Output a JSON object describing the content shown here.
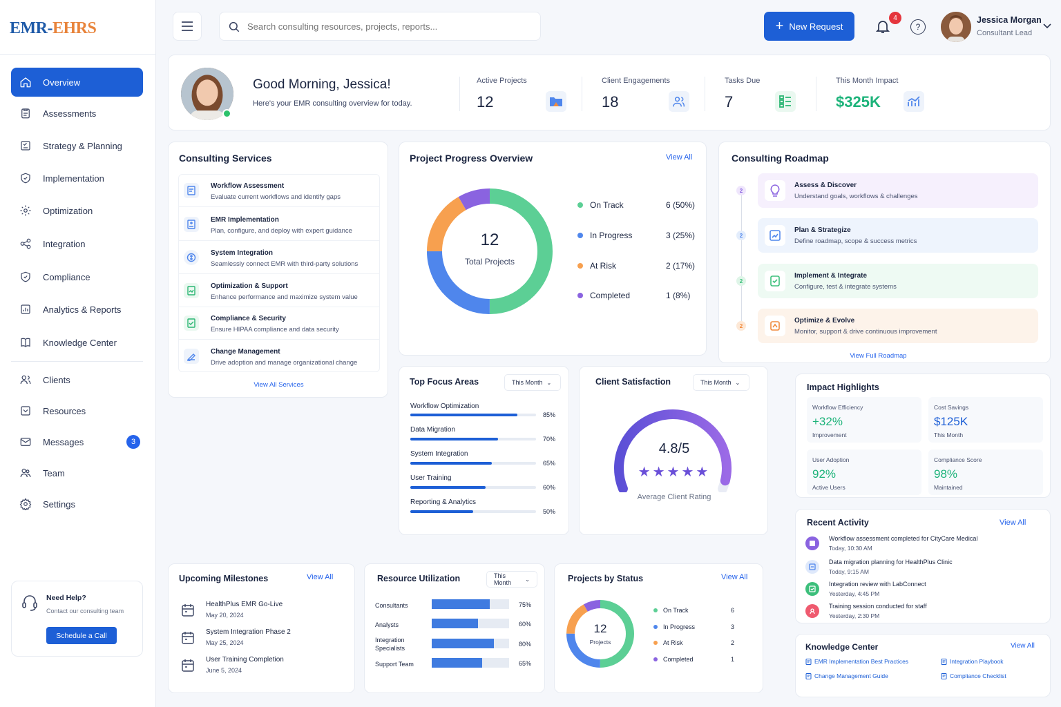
{
  "brand": {
    "logo_part1": "EMR",
    "logo_sep": "-",
    "logo_part2": "EHRS"
  },
  "sidebar": {
    "items": [
      {
        "label": "Overview"
      },
      {
        "label": "Assessments"
      },
      {
        "label": "Strategy & Planning"
      },
      {
        "label": "Implementation"
      },
      {
        "label": "Optimization"
      },
      {
        "label": "Integration"
      },
      {
        "label": "Compliance"
      },
      {
        "label": "Analytics & Reports"
      },
      {
        "label": "Knowledge Center"
      }
    ],
    "items2": [
      {
        "label": "Clients"
      },
      {
        "label": "Resources"
      },
      {
        "label": "Messages",
        "badge": "3"
      },
      {
        "label": "Team"
      },
      {
        "label": "Settings"
      }
    ],
    "help": {
      "title": "Need Help?",
      "subtitle": "Contact our consulting team",
      "button": "Schedule a Call"
    }
  },
  "header": {
    "search_placeholder": "Search consulting resources, projects, reports...",
    "new_request": "New Request",
    "notif_count": "4",
    "user_name": "Jessica Morgan",
    "user_role": "Consultant Lead"
  },
  "welcome": {
    "greeting": "Good Morning, Jessica!",
    "subtitle": "Here's your EMR consulting overview for today.",
    "stats": [
      {
        "label": "Active Projects",
        "value": "12"
      },
      {
        "label": "Client Engagements",
        "value": "18"
      },
      {
        "label": "Tasks Due",
        "value": "7"
      },
      {
        "label": "This Month Impact",
        "value": "$325K"
      }
    ]
  },
  "services": {
    "title": "Consulting Services",
    "items": [
      {
        "title": "Workflow Assessment",
        "desc": "Evaluate current workflows and identify gaps"
      },
      {
        "title": "EMR Implementation",
        "desc": "Plan, configure, and deploy with expert guidance"
      },
      {
        "title": "System Integration",
        "desc": "Seamlessly connect EMR with third-party solutions"
      },
      {
        "title": "Optimization & Support",
        "desc": "Enhance performance and maximize system value"
      },
      {
        "title": "Compliance & Security",
        "desc": "Ensure HIPAA compliance and data security"
      },
      {
        "title": "Change Management",
        "desc": "Drive adoption and manage organizational change"
      }
    ],
    "view_all": "View All Services"
  },
  "progress": {
    "title": "Project Progress Overview",
    "view_all": "View All",
    "center_value": "12",
    "center_label": "Total Projects",
    "legend": [
      {
        "label": "On Track",
        "value": "6 (50%)",
        "count": 6,
        "color": "#5ccf95"
      },
      {
        "label": "In Progress",
        "value": "3 (25%)",
        "count": 3,
        "color": "#4f86ec"
      },
      {
        "label": "At Risk",
        "value": "2 (17%)",
        "count": 2,
        "color": "#f7a04f"
      },
      {
        "label": "Completed",
        "value": "1 (8%)",
        "count": 1,
        "color": "#8a63e0"
      }
    ]
  },
  "roadmap": {
    "title": "Consulting Roadmap",
    "steps": [
      {
        "num": "2",
        "title": "Assess & Discover",
        "desc": "Understand goals, workflows & challenges",
        "bg": "#f6f0fd",
        "color": "#8a63e0"
      },
      {
        "num": "2",
        "title": "Plan & Strategize",
        "desc": "Define roadmap, scope & success metrics",
        "bg": "#eef4fd",
        "color": "#4f86ec"
      },
      {
        "num": "2",
        "title": "Implement & Integrate",
        "desc": "Configure, test & integrate systems",
        "bg": "#eefaf3",
        "color": "#3cbf7b"
      },
      {
        "num": "2",
        "title": "Optimize & Evolve",
        "desc": "Monitor, support & drive continuous improvement",
        "bg": "#fdf3ea",
        "color": "#f08a3c"
      }
    ],
    "view_full": "View Full Roadmap"
  },
  "focus": {
    "title": "Top Focus Areas",
    "period": "This Month",
    "items": [
      {
        "label": "Workflow Optimization",
        "value": "85%",
        "pct": 85
      },
      {
        "label": "Data Migration",
        "value": "70%",
        "pct": 70
      },
      {
        "label": "System Integration",
        "value": "65%",
        "pct": 65
      },
      {
        "label": "User Training",
        "value": "60%",
        "pct": 60
      },
      {
        "label": "Reporting & Analytics",
        "value": "50%",
        "pct": 50
      }
    ]
  },
  "satisfaction": {
    "title": "Client Satisfaction",
    "period": "This Month",
    "value": "4.8/5",
    "rating": 4.8,
    "label": "Average Client Rating"
  },
  "impact": {
    "title": "Impact Highlights",
    "items": [
      {
        "label": "Workflow Efficiency",
        "value": "+32%",
        "sub": "Improvement"
      },
      {
        "label": "Cost Savings",
        "value": "$125K",
        "sub": "This Month"
      },
      {
        "label": "User Adoption",
        "value": "92%",
        "sub": "Active Users"
      },
      {
        "label": "Compliance Score",
        "value": "98%",
        "sub": "Maintained"
      }
    ]
  },
  "activity": {
    "title": "Recent Activity",
    "view_all": "View All",
    "items": [
      {
        "title": "Workflow assessment completed for CityCare Medical",
        "time": "Today, 10:30 AM"
      },
      {
        "title": "Data migration planning for HealthPlus Clinic",
        "time": "Today, 9:15 AM"
      },
      {
        "title": "Integration review with LabConnect",
        "time": "Yesterday, 4:45 PM"
      },
      {
        "title": "Training session conducted for staff",
        "time": "Yesterday, 2:30 PM"
      }
    ]
  },
  "milestones": {
    "title": "Upcoming Milestones",
    "view_all": "View All",
    "items": [
      {
        "title": "HealthPlus EMR Go-Live",
        "date": "May 20, 2024"
      },
      {
        "title": "System Integration Phase 2",
        "date": "May 25, 2024"
      },
      {
        "title": "User Training Completion",
        "date": "June 5, 2024"
      }
    ]
  },
  "resources": {
    "title": "Resource Utilization",
    "period": "This Month",
    "items": [
      {
        "label": "Consultants",
        "value": "75%",
        "pct": 75
      },
      {
        "label": "Analysts",
        "value": "60%",
        "pct": 60
      },
      {
        "label": "Integration Specialists",
        "value": "80%",
        "pct": 80
      },
      {
        "label": "Support Team",
        "value": "65%",
        "pct": 65
      }
    ]
  },
  "status": {
    "title": "Projects by Status",
    "view_all": "View All",
    "center_value": "12",
    "center_label": "Projects",
    "items": [
      {
        "label": "On Track",
        "value": "6",
        "count": 6,
        "color": "#5ccf95"
      },
      {
        "label": "In Progress",
        "value": "3",
        "count": 3,
        "color": "#4f86ec"
      },
      {
        "label": "At Risk",
        "value": "2",
        "count": 2,
        "color": "#f7a04f"
      },
      {
        "label": "Completed",
        "value": "1",
        "count": 1,
        "color": "#8a63e0"
      }
    ]
  },
  "knowledge": {
    "title": "Knowledge Center",
    "view_all": "View All",
    "links": [
      "EMR Implementation Best Practices",
      "Integration Playbook",
      "Change Management Guide",
      "Compliance Checklist"
    ]
  }
}
